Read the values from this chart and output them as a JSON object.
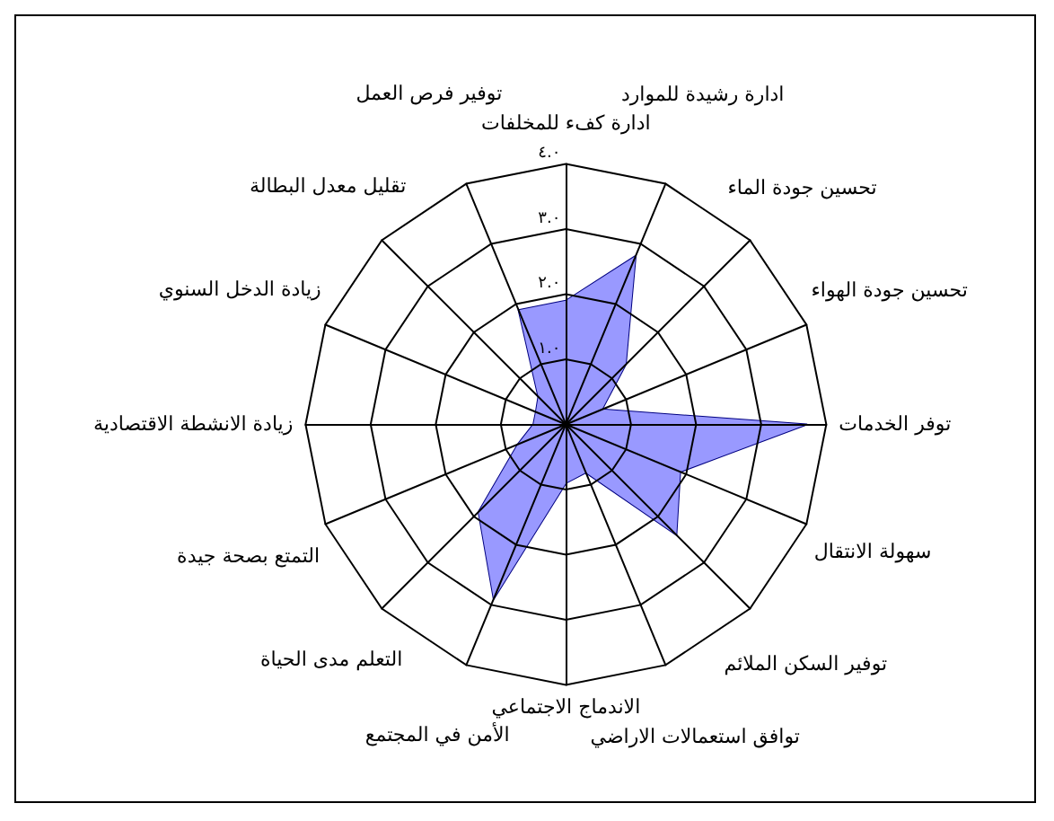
{
  "chart_data": {
    "type": "radar",
    "categories": [
      "ادارة كفء للمخلفات",
      "ادارة رشيدة للموارد",
      "تحسين جودة الماء",
      "تحسين جودة الهواء",
      "توفر الخدمات",
      "سهولة الانتقال",
      "توفير السكن الملائم",
      "توافق استعمالات الاراضي",
      "الاندماج الاجتماعي",
      "الأمن في المجتمع",
      "التعلم مدى الحياة",
      "التمتع بصحة جيدة",
      "زيادة الانشطة الاقتصادية",
      "زيادة الدخل السنوي",
      "تقليل معدل البطالة",
      "توفير فرص العمل"
    ],
    "series": [
      {
        "color": "#9999ff",
        "values": [
          1.9,
          2.8,
          1.3,
          0.6,
          3.7,
          1.9,
          2.4,
          0.8,
          0.9,
          2.9,
          1.9,
          0.8,
          0.5,
          0.5,
          0.6,
          1.9
        ]
      }
    ],
    "ylim": [
      0,
      4
    ],
    "yticks": [
      {
        "value": 1,
        "label": "١.٠"
      },
      {
        "value": 2,
        "label": "٢.٠"
      },
      {
        "value": 3,
        "label": "٣.٠"
      },
      {
        "value": 4,
        "label": "٤.٠"
      }
    ],
    "marker": "none",
    "legend": false
  }
}
